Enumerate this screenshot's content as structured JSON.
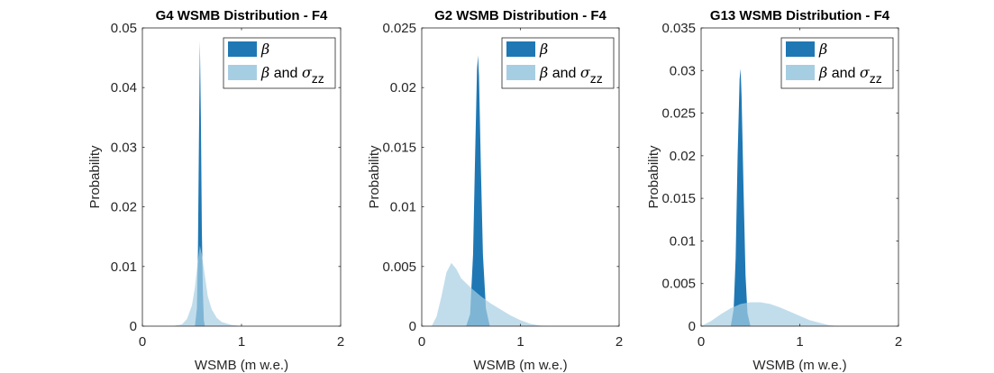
{
  "colors": {
    "beta": "#1f78b4",
    "beta_sigma": "#a6cee3",
    "axis": "#262626"
  },
  "chart_data": [
    {
      "type": "area",
      "title": "G4 WSMB Distribution - F4",
      "xlabel": "WSMB (m w.e.)",
      "ylabel": "Probability",
      "xlim": [
        0,
        2
      ],
      "ylim": [
        0,
        0.05
      ],
      "xticks": [
        "0",
        "1",
        "2"
      ],
      "yticks": [
        "0",
        "0.01",
        "0.02",
        "0.03",
        "0.04",
        "0.05"
      ],
      "legend": "top-right",
      "series": [
        {
          "name": "β",
          "color": "#1f78b4",
          "x": [
            0.53,
            0.55,
            0.56,
            0.57,
            0.58,
            0.59,
            0.6,
            0.61,
            0.62,
            0.63
          ],
          "y": [
            0,
            0.003,
            0.012,
            0.03,
            0.0478,
            0.035,
            0.016,
            0.006,
            0.001,
            0
          ]
        },
        {
          "name": "β and σzz",
          "color": "#a6cee3",
          "x": [
            0.3,
            0.4,
            0.45,
            0.5,
            0.53,
            0.56,
            0.58,
            0.6,
            0.63,
            0.66,
            0.7,
            0.75,
            0.8,
            0.9,
            1.0
          ],
          "y": [
            0,
            0.0003,
            0.0012,
            0.0035,
            0.0065,
            0.011,
            0.0135,
            0.012,
            0.0085,
            0.005,
            0.0028,
            0.0014,
            0.0007,
            0.0002,
            0
          ]
        }
      ]
    },
    {
      "type": "area",
      "title": "G2 WSMB Distribution - F4",
      "xlabel": "WSMB (m w.e.)",
      "ylabel": "Probability",
      "xlim": [
        0,
        2
      ],
      "ylim": [
        0,
        0.025
      ],
      "xticks": [
        "0",
        "1",
        "2"
      ],
      "yticks": [
        "0",
        "0.005",
        "0.01",
        "0.015",
        "0.02",
        "0.025"
      ],
      "legend": "top-right",
      "series": [
        {
          "name": "β",
          "color": "#1f78b4",
          "x": [
            0.45,
            0.49,
            0.52,
            0.54,
            0.56,
            0.57,
            0.58,
            0.6,
            0.62,
            0.65,
            0.69
          ],
          "y": [
            0,
            0.001,
            0.006,
            0.014,
            0.0215,
            0.0227,
            0.021,
            0.013,
            0.006,
            0.0015,
            0
          ]
        },
        {
          "name": "β and σzz",
          "color": "#a6cee3",
          "x": [
            0.1,
            0.15,
            0.2,
            0.25,
            0.3,
            0.35,
            0.4,
            0.5,
            0.6,
            0.7,
            0.8,
            0.9,
            1.0,
            1.1,
            1.2,
            1.3
          ],
          "y": [
            0,
            0.0008,
            0.0025,
            0.0045,
            0.0053,
            0.0048,
            0.004,
            0.0032,
            0.0025,
            0.0019,
            0.0014,
            0.0009,
            0.0005,
            0.0002,
            5e-05,
            0
          ]
        }
      ]
    },
    {
      "type": "area",
      "title": "G13 WSMB Distribution - F4",
      "xlabel": "WSMB (m w.e.)",
      "ylabel": "Probability",
      "xlim": [
        0,
        2
      ],
      "ylim": [
        0,
        0.035
      ],
      "xticks": [
        "0",
        "1",
        "2"
      ],
      "yticks": [
        "0",
        "0.005",
        "0.01",
        "0.015",
        "0.02",
        "0.025",
        "0.03",
        "0.035"
      ],
      "legend": "top-right",
      "series": [
        {
          "name": "β",
          "color": "#1f78b4",
          "x": [
            0.3,
            0.33,
            0.35,
            0.37,
            0.39,
            0.4,
            0.41,
            0.43,
            0.45,
            0.47,
            0.5
          ],
          "y": [
            0,
            0.002,
            0.008,
            0.02,
            0.029,
            0.0302,
            0.027,
            0.016,
            0.006,
            0.0015,
            0
          ]
        },
        {
          "name": "β and σzz",
          "color": "#a6cee3",
          "x": [
            0.0,
            0.1,
            0.2,
            0.3,
            0.4,
            0.5,
            0.6,
            0.7,
            0.8,
            0.9,
            1.0,
            1.1,
            1.2,
            1.3,
            1.4
          ],
          "y": [
            0,
            0.0006,
            0.0014,
            0.0021,
            0.0026,
            0.0028,
            0.0028,
            0.0026,
            0.0022,
            0.0017,
            0.0012,
            0.0007,
            0.0004,
            0.0001,
            0
          ]
        }
      ]
    }
  ]
}
